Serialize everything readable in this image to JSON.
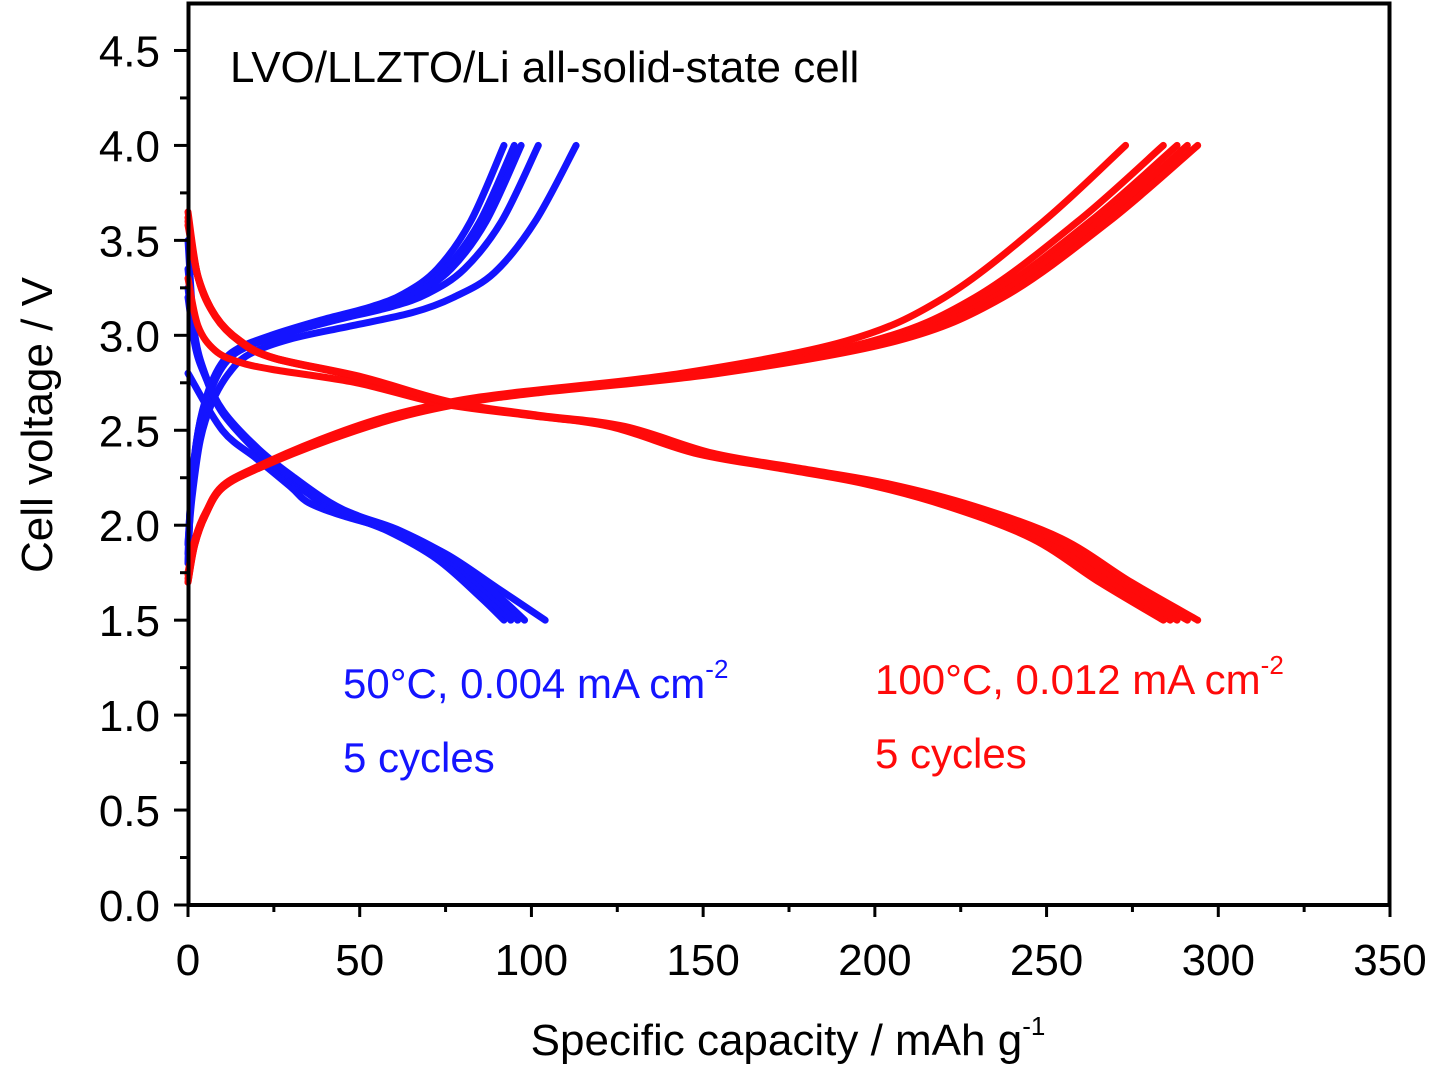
{
  "chart_data": {
    "type": "line",
    "title": "LVO/LLZTO/Li all-solid-state cell",
    "xlabel": "Specific capacity / mAh g",
    "xlabel_sup": "-1",
    "ylabel": "Cell voltage / V",
    "xlim": [
      0,
      350
    ],
    "ylim": [
      0,
      4.75
    ],
    "xticks": [
      "0",
      "50",
      "100",
      "150",
      "200",
      "250",
      "300",
      "350"
    ],
    "yticks": [
      "0.0",
      "0.5",
      "1.0",
      "1.5",
      "2.0",
      "2.5",
      "3.0",
      "3.5",
      "4.0",
      "4.5"
    ],
    "grid": false,
    "colors": {
      "blue": "#1414ff",
      "red": "#ff0a0a",
      "axis": "#000000"
    },
    "annotations": [
      {
        "line1": "50°C, 0.004 mA cm",
        "sup": "-2",
        "line2": "5 cycles",
        "color": "#1414ff"
      },
      {
        "line1": "100°C, 0.012 mA cm",
        "sup": "-2",
        "line2": "5 cycles",
        "color": "#ff0a0a"
      }
    ],
    "series": [
      {
        "color": "#1414ff",
        "x": [
          0,
          1,
          3,
          5.8,
          9.7,
          14.5,
          24.2,
          38.7,
          53.3,
          62.9,
          72.6,
          82.3,
          92
        ],
        "y": [
          1.8,
          2.2,
          2.5,
          2.7,
          2.85,
          2.93,
          3.0,
          3.08,
          3.15,
          3.22,
          3.35,
          3.6,
          4.0
        ]
      },
      {
        "color": "#1414ff",
        "x": [
          0,
          1,
          3,
          6,
          10,
          15,
          25,
          40,
          55,
          65,
          75,
          85,
          95
        ],
        "y": [
          1.8,
          2.2,
          2.5,
          2.7,
          2.85,
          2.93,
          3.0,
          3.08,
          3.15,
          3.22,
          3.35,
          3.6,
          4.0
        ]
      },
      {
        "color": "#1414ff",
        "x": [
          0,
          1,
          3.1,
          6.1,
          10.2,
          15.3,
          25.5,
          40.8,
          56.2,
          66.4,
          76.6,
          86.8,
          97
        ],
        "y": [
          1.85,
          2.2,
          2.5,
          2.7,
          2.85,
          2.93,
          3.0,
          3.08,
          3.15,
          3.22,
          3.35,
          3.6,
          4.0
        ]
      },
      {
        "color": "#1414ff",
        "x": [
          0,
          1.1,
          3.2,
          6.4,
          10.7,
          16.1,
          26.8,
          43,
          59.1,
          69.8,
          80.5,
          91.3,
          102
        ],
        "y": [
          1.9,
          2.2,
          2.5,
          2.7,
          2.85,
          2.93,
          3.0,
          3.08,
          3.15,
          3.22,
          3.35,
          3.6,
          4.0
        ]
      },
      {
        "color": "#1414ff",
        "x": [
          0,
          1.2,
          3.6,
          7.1,
          11.9,
          17.8,
          29.7,
          47.6,
          65.4,
          77.3,
          89.2,
          101.1,
          113
        ],
        "y": [
          1.9,
          2.15,
          2.45,
          2.65,
          2.8,
          2.9,
          2.98,
          3.05,
          3.12,
          3.2,
          3.33,
          3.6,
          4.0
        ]
      },
      {
        "color": "#1414ff",
        "x": [
          0,
          10,
          20,
          30,
          35,
          45,
          60,
          75,
          90,
          104
        ],
        "y": [
          2.8,
          2.5,
          2.35,
          2.2,
          2.12,
          2.05,
          1.97,
          1.85,
          1.67,
          1.5
        ]
      },
      {
        "color": "#1414ff",
        "x": [
          0,
          1.9,
          4.8,
          9.7,
          19.4,
          29,
          38.7,
          46.5,
          58.1,
          72.6,
          85.2,
          92
        ],
        "y": [
          3.5,
          3.0,
          2.8,
          2.6,
          2.4,
          2.25,
          2.12,
          2.05,
          1.97,
          1.82,
          1.62,
          1.5
        ]
      },
      {
        "color": "#1414ff",
        "x": [
          0,
          2,
          4.9,
          9.9,
          19.8,
          29.7,
          39.6,
          47.5,
          59.4,
          74.2,
          87,
          94
        ],
        "y": [
          3.35,
          3.0,
          2.8,
          2.6,
          2.4,
          2.25,
          2.12,
          2.05,
          1.97,
          1.82,
          1.62,
          1.5
        ]
      },
      {
        "color": "#1414ff",
        "x": [
          0,
          2,
          5.1,
          10.1,
          20.2,
          30.3,
          40.4,
          48.5,
          60.6,
          75.8,
          89,
          96
        ],
        "y": [
          3.25,
          2.95,
          2.78,
          2.6,
          2.4,
          2.25,
          2.12,
          2.05,
          1.97,
          1.82,
          1.62,
          1.5
        ]
      },
      {
        "color": "#1414ff",
        "x": [
          0,
          2.1,
          5.2,
          10.3,
          20.6,
          31,
          41.3,
          49.5,
          61.9,
          77.4,
          90.8,
          98
        ],
        "y": [
          3.2,
          2.95,
          2.78,
          2.6,
          2.4,
          2.25,
          2.12,
          2.05,
          1.97,
          1.82,
          1.62,
          1.5
        ]
      },
      {
        "color": "#ff0a0a",
        "x": [
          0,
          1.9,
          4.8,
          9.6,
          19.2,
          38.3,
          57.5,
          76.6,
          95.8,
          143.7,
          191.6,
          220.3,
          249.1,
          273
        ],
        "y": [
          1.7,
          1.9,
          2.05,
          2.2,
          2.3,
          2.45,
          2.57,
          2.65,
          2.7,
          2.8,
          2.97,
          3.2,
          3.6,
          4.0
        ]
      },
      {
        "color": "#ff0a0a",
        "x": [
          0,
          2,
          5,
          10,
          19.9,
          39.9,
          59.8,
          79.7,
          99.6,
          149.5,
          199.3,
          229.2,
          259.1,
          284
        ],
        "y": [
          1.7,
          1.9,
          2.05,
          2.2,
          2.3,
          2.45,
          2.57,
          2.65,
          2.7,
          2.8,
          2.97,
          3.2,
          3.6,
          4.0
        ]
      },
      {
        "color": "#ff0a0a",
        "x": [
          0,
          2,
          5,
          10.1,
          20.2,
          40.4,
          60.6,
          80.8,
          101,
          151.6,
          202.1,
          232.4,
          262.7,
          288
        ],
        "y": [
          1.72,
          1.9,
          2.05,
          2.2,
          2.3,
          2.45,
          2.57,
          2.65,
          2.7,
          2.8,
          2.97,
          3.2,
          3.6,
          4.0
        ]
      },
      {
        "color": "#ff0a0a",
        "x": [
          0,
          2,
          5.1,
          10.2,
          20.4,
          40.8,
          61.3,
          81.7,
          102.1,
          153.2,
          204.2,
          234.8,
          265.5,
          291
        ],
        "y": [
          1.74,
          1.92,
          2.06,
          2.2,
          2.3,
          2.45,
          2.57,
          2.65,
          2.7,
          2.8,
          2.97,
          3.2,
          3.6,
          4.0
        ]
      },
      {
        "color": "#ff0a0a",
        "x": [
          0,
          2.1,
          5.2,
          10.3,
          20.6,
          41.3,
          61.9,
          82.5,
          103.2,
          154.7,
          206.3,
          237.3,
          268.2,
          294
        ],
        "y": [
          1.75,
          1.93,
          2.07,
          2.2,
          2.3,
          2.45,
          2.57,
          2.65,
          2.7,
          2.8,
          2.97,
          3.2,
          3.6,
          4.0
        ]
      },
      {
        "color": "#ff0a0a",
        "x": [
          0,
          2.9,
          7.9,
          14.7,
          24.6,
          49.1,
          73.7,
          98.3,
          122.8,
          147.4,
          172,
          196.6,
          221.1,
          245.7,
          265.4,
          284
        ],
        "y": [
          3.3,
          3.05,
          2.92,
          2.86,
          2.82,
          2.75,
          2.64,
          2.58,
          2.52,
          2.38,
          2.3,
          2.22,
          2.1,
          1.93,
          1.7,
          1.5
        ]
      },
      {
        "color": "#ff0a0a",
        "x": [
          0,
          3,
          7.9,
          14.8,
          24.7,
          49.5,
          74.2,
          99,
          123.7,
          148.5,
          173.2,
          197.9,
          222.7,
          247.4,
          267.2,
          286
        ],
        "y": [
          3.65,
          3.3,
          3.1,
          2.97,
          2.88,
          2.78,
          2.65,
          2.58,
          2.52,
          2.38,
          2.3,
          2.22,
          2.1,
          1.93,
          1.7,
          1.5
        ]
      },
      {
        "color": "#ff0a0a",
        "x": [
          0,
          3,
          8,
          15,
          24.9,
          49.8,
          74.7,
          99.7,
          124.6,
          149.5,
          174.4,
          199.3,
          224.2,
          249.1,
          269.1,
          288
        ],
        "y": [
          3.62,
          3.3,
          3.1,
          2.97,
          2.88,
          2.78,
          2.65,
          2.58,
          2.52,
          2.38,
          2.3,
          2.22,
          2.1,
          1.93,
          1.7,
          1.5
        ]
      },
      {
        "color": "#ff0a0a",
        "x": [
          0,
          3,
          8.1,
          15.1,
          25.2,
          50.3,
          75.5,
          100.7,
          125.9,
          151,
          176.2,
          201.4,
          226.6,
          251.7,
          271.9,
          291
        ],
        "y": [
          3.6,
          3.3,
          3.1,
          2.97,
          2.88,
          2.78,
          2.65,
          2.58,
          2.52,
          2.38,
          2.3,
          2.22,
          2.1,
          1.93,
          1.7,
          1.5
        ]
      },
      {
        "color": "#ff0a0a",
        "x": [
          0,
          3.1,
          8.1,
          15.3,
          25.4,
          50.9,
          76.3,
          101.7,
          127.2,
          152.6,
          178,
          203.4,
          228.9,
          254.3,
          274.6,
          294
        ],
        "y": [
          3.58,
          3.3,
          3.1,
          2.97,
          2.88,
          2.78,
          2.65,
          2.58,
          2.52,
          2.38,
          2.3,
          2.22,
          2.1,
          1.93,
          1.7,
          1.5
        ]
      }
    ]
  }
}
